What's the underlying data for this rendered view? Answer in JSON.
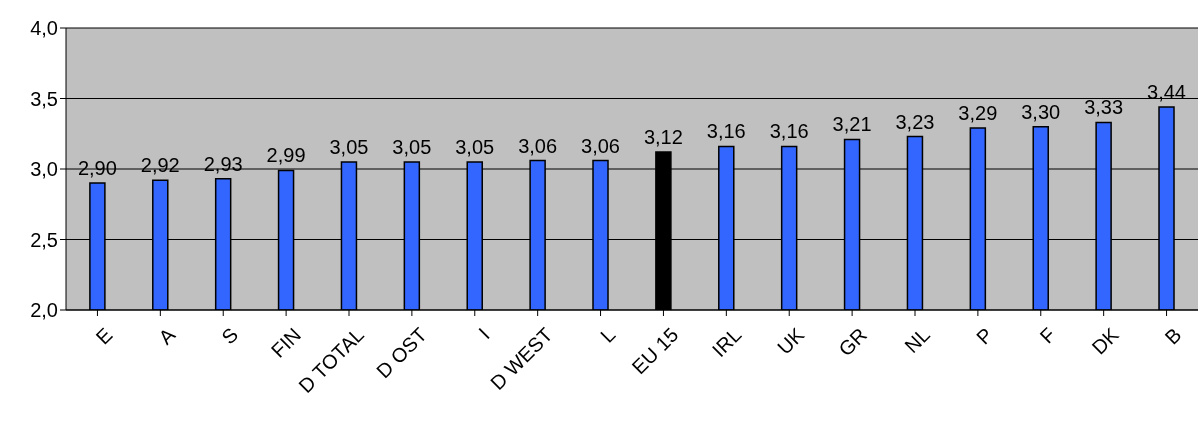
{
  "chart_data": {
    "type": "bar",
    "categories": [
      "E",
      "A",
      "S",
      "FIN",
      "D TOTAL",
      "D OST",
      "I",
      "D WEST",
      "L",
      "EU 15",
      "IRL",
      "UK",
      "GR",
      "NL",
      "P",
      "F",
      "DK",
      "B"
    ],
    "values": [
      2.9,
      2.92,
      2.93,
      2.99,
      3.05,
      3.05,
      3.05,
      3.06,
      3.06,
      3.12,
      3.16,
      3.16,
      3.21,
      3.23,
      3.29,
      3.3,
      3.33,
      3.44
    ],
    "colors": [
      "#3366ff",
      "#3366ff",
      "#3366ff",
      "#3366ff",
      "#3366ff",
      "#3366ff",
      "#3366ff",
      "#3366ff",
      "#3366ff",
      "#000000",
      "#3366ff",
      "#3366ff",
      "#3366ff",
      "#3366ff",
      "#3366ff",
      "#3366ff",
      "#3366ff",
      "#3366ff"
    ],
    "value_labels": [
      "2,90",
      "2,92",
      "2,93",
      "2,99",
      "3,05",
      "3,05",
      "3,05",
      "3,06",
      "3,06",
      "3,12",
      "3,16",
      "3,16",
      "3,21",
      "3,23",
      "3,29",
      "3,30",
      "3,33",
      "3,44"
    ],
    "ylim": [
      2,
      4
    ],
    "yticks": [
      {
        "value": 2,
        "label": "2,0"
      },
      {
        "value": 2.5,
        "label": "2,5"
      },
      {
        "value": 3,
        "label": "3,0"
      },
      {
        "value": 3.5,
        "label": "3,5"
      },
      {
        "value": 4,
        "label": "4,0"
      }
    ],
    "grid": "y"
  }
}
